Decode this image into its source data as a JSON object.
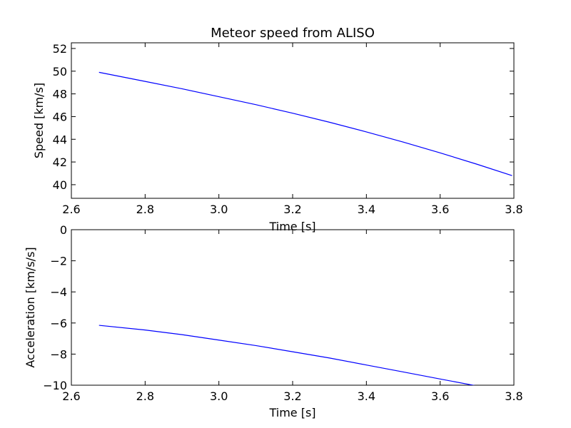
{
  "chart_data": [
    {
      "type": "line",
      "title": "Meteor speed from  ALISO",
      "xlabel": "Time [s]",
      "ylabel": "Speed [km/s]",
      "xlim": [
        2.6,
        3.8
      ],
      "ylim": [
        38.8,
        52.5
      ],
      "xticks": [
        "2.6",
        "2.8",
        "3.0",
        "3.2",
        "3.4",
        "3.6",
        "3.8"
      ],
      "yticks": [
        "40",
        "42",
        "44",
        "46",
        "48",
        "50",
        "52"
      ],
      "grid": false,
      "line_color": "#0000ff",
      "series": [
        {
          "x": [
            2.675,
            2.8,
            2.9,
            3.0,
            3.1,
            3.2,
            3.3,
            3.4,
            3.5,
            3.6,
            3.7,
            3.795
          ],
          "values": [
            49.9,
            49.1,
            48.45,
            47.75,
            47.05,
            46.3,
            45.5,
            44.65,
            43.75,
            42.8,
            41.8,
            40.8
          ]
        }
      ]
    },
    {
      "type": "line",
      "title": "",
      "xlabel": "Time [s]",
      "ylabel": "Acceleration [km/s/s]",
      "xlim": [
        2.6,
        3.8
      ],
      "ylim": [
        -10,
        0
      ],
      "xticks": [
        "2.6",
        "2.8",
        "3.0",
        "3.2",
        "3.4",
        "3.6",
        "3.8"
      ],
      "yticks": [
        "0",
        "−2",
        "−4",
        "−6",
        "−8",
        "−10"
      ],
      "grid": false,
      "line_color": "#0000ff",
      "series": [
        {
          "x": [
            2.675,
            2.8,
            2.9,
            3.0,
            3.1,
            3.2,
            3.3,
            3.4,
            3.5,
            3.6,
            3.7
          ],
          "values": [
            -6.15,
            -6.45,
            -6.75,
            -7.1,
            -7.45,
            -7.85,
            -8.25,
            -8.7,
            -9.15,
            -9.6,
            -10.05
          ]
        }
      ]
    }
  ]
}
